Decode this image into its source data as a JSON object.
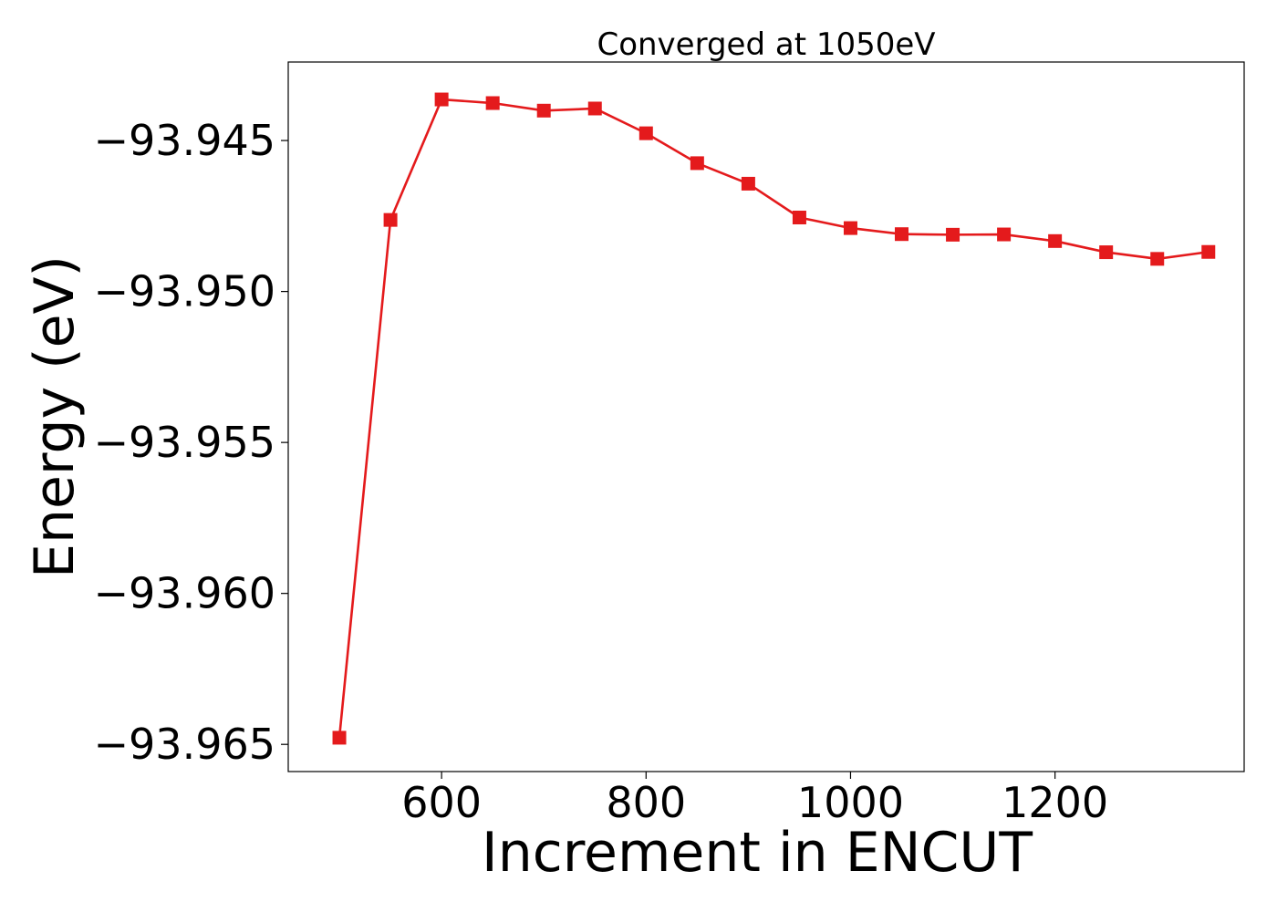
{
  "chart_data": {
    "type": "line",
    "title": "Converged at 1050eV",
    "xlabel": "Increment in ENCUT",
    "ylabel": "Energy (eV)",
    "xlim": [
      450,
      1385
    ],
    "ylim": [
      -93.9659,
      -93.9424
    ],
    "x_ticks": [
      600,
      800,
      1000,
      1200
    ],
    "x_tick_labels": [
      "600",
      "800",
      "1000",
      "1200"
    ],
    "y_ticks": [
      -93.945,
      -93.95,
      -93.955,
      -93.96,
      -93.965
    ],
    "y_tick_labels": [
      "−93.945",
      "−93.950",
      "−93.955",
      "−93.960",
      "−93.965"
    ],
    "grid": false,
    "series": [
      {
        "color": "#e41a1c",
        "marker": "square",
        "x": [
          500,
          550,
          600,
          650,
          700,
          750,
          800,
          850,
          900,
          950,
          1000,
          1050,
          1100,
          1150,
          1200,
          1250,
          1300,
          1350
        ],
        "y": [
          -93.96478,
          -93.94763,
          -93.94364,
          -93.94376,
          -93.94401,
          -93.94394,
          -93.94476,
          -93.94575,
          -93.94643,
          -93.94755,
          -93.9479,
          -93.9481,
          -93.94812,
          -93.94811,
          -93.94833,
          -93.9487,
          -93.94892,
          -93.94869
        ]
      }
    ]
  }
}
